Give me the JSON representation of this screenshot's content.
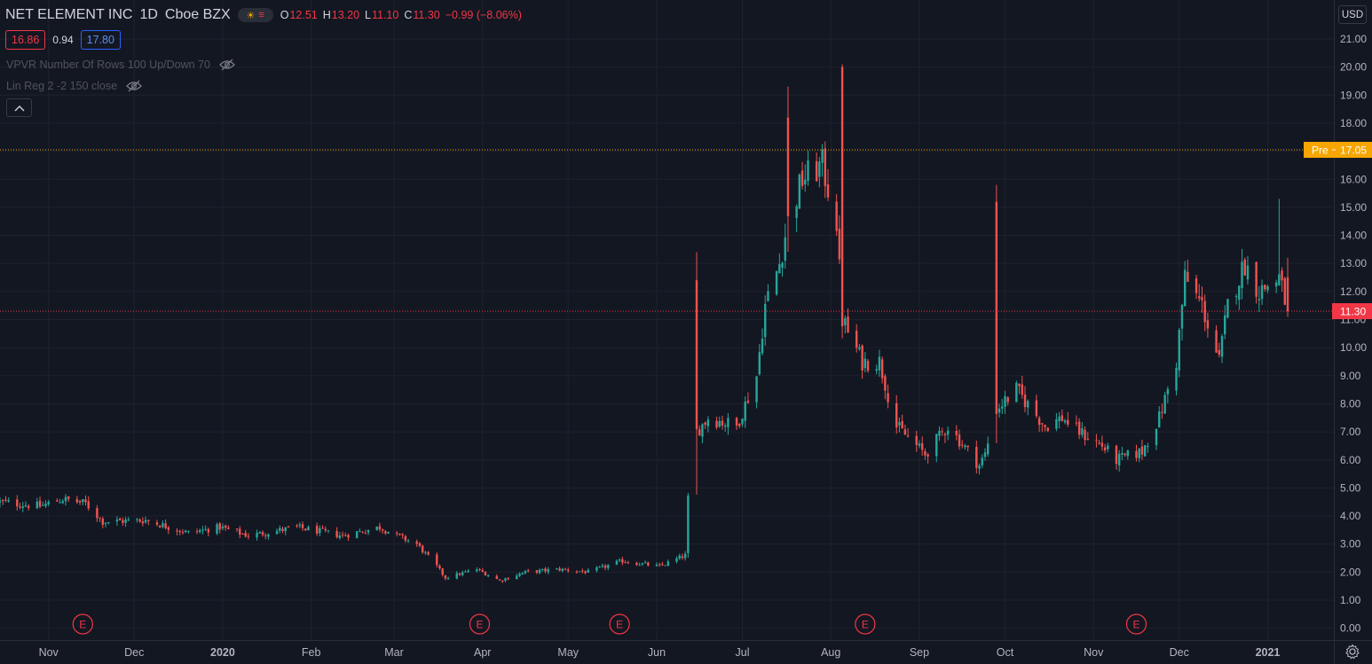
{
  "header": {
    "symbol_name": "NET ELEMENT INC",
    "interval": "1D",
    "exchange": "Cboe BZX",
    "ohlc": {
      "o_label": "O",
      "o": "12.51",
      "h_label": "H",
      "h": "13.20",
      "l_label": "L",
      "l": "11.10",
      "c_label": "C",
      "c": "11.30",
      "change": "−0.99 (−8.06%)"
    },
    "sell_price": "16.86",
    "spread": "0.94",
    "buy_price": "17.80"
  },
  "studies": [
    {
      "label": "VPVR Number Of Rows 100 Up/Down 70"
    },
    {
      "label": "Lin Reg 2 -2 150 close"
    }
  ],
  "currency": "USD",
  "price_labels": {
    "pre_tag": "Pre",
    "pre_value": "17.05",
    "last_value": "11.30"
  },
  "colors": {
    "background": "#131722",
    "up": "#26a69a",
    "down": "#ef5350",
    "pre_line": "#f7a600",
    "last_line": "#f23645"
  },
  "chart_data": {
    "type": "candlestick",
    "ylim": [
      -0.3,
      21.5
    ],
    "y_ticks": [
      "0.00",
      "1.00",
      "2.00",
      "3.00",
      "4.00",
      "5.00",
      "6.00",
      "7.00",
      "8.00",
      "9.00",
      "10.00",
      "11.00",
      "12.00",
      "13.00",
      "14.00",
      "15.00",
      "16.00",
      "17.00",
      "18.00",
      "19.00",
      "20.00",
      "21.00"
    ],
    "x_ticks": [
      {
        "label": "Nov",
        "date": "2019-11-01",
        "bold": false
      },
      {
        "label": "Dec",
        "date": "2019-12-01",
        "bold": false
      },
      {
        "label": "2020",
        "date": "2020-01-01",
        "bold": true
      },
      {
        "label": "Feb",
        "date": "2020-02-01",
        "bold": false
      },
      {
        "label": "Mar",
        "date": "2020-03-01",
        "bold": false
      },
      {
        "label": "Apr",
        "date": "2020-04-01",
        "bold": false
      },
      {
        "label": "May",
        "date": "2020-05-01",
        "bold": false
      },
      {
        "label": "Jun",
        "date": "2020-06-01",
        "bold": false
      },
      {
        "label": "Jul",
        "date": "2020-07-01",
        "bold": false
      },
      {
        "label": "Aug",
        "date": "2020-08-01",
        "bold": false
      },
      {
        "label": "Sep",
        "date": "2020-09-01",
        "bold": false
      },
      {
        "label": "Oct",
        "date": "2020-10-01",
        "bold": false
      },
      {
        "label": "Nov",
        "date": "2020-11-01",
        "bold": false
      },
      {
        "label": "Dec",
        "date": "2020-12-01",
        "bold": false
      },
      {
        "label": "2021",
        "date": "2021-01-01",
        "bold": true
      }
    ],
    "earnings_marker_label": "E",
    "earnings_dates": [
      "2019-11-13",
      "2020-03-31",
      "2020-05-19",
      "2020-08-13",
      "2020-11-16"
    ],
    "horizontal_lines": [
      {
        "name": "pre-market",
        "value": 17.05
      },
      {
        "name": "last-price",
        "value": 11.3
      }
    ],
    "anchors": [
      {
        "date": "2019-10-15",
        "close": 4.5
      },
      {
        "date": "2019-10-29",
        "close": 4.35
      },
      {
        "date": "2019-11-06",
        "close": 4.6
      },
      {
        "date": "2019-11-14",
        "close": 4.45
      },
      {
        "date": "2019-11-20",
        "close": 3.8
      },
      {
        "date": "2019-12-05",
        "close": 3.85
      },
      {
        "date": "2019-12-20",
        "close": 3.4
      },
      {
        "date": "2019-12-31",
        "close": 3.6
      },
      {
        "date": "2020-01-10",
        "close": 3.3
      },
      {
        "date": "2020-01-27",
        "close": 3.6
      },
      {
        "date": "2020-02-12",
        "close": 3.3
      },
      {
        "date": "2020-02-25",
        "close": 3.6
      },
      {
        "date": "2020-03-02",
        "close": 3.3
      },
      {
        "date": "2020-03-09",
        "close": 3.0
      },
      {
        "date": "2020-03-16",
        "close": 2.2
      },
      {
        "date": "2020-03-19",
        "close": 1.8
      },
      {
        "date": "2020-03-30",
        "close": 2.1
      },
      {
        "date": "2020-04-07",
        "close": 1.7
      },
      {
        "date": "2020-04-16",
        "close": 2.0
      },
      {
        "date": "2020-04-28",
        "close": 2.1
      },
      {
        "date": "2020-05-08",
        "close": 2.0
      },
      {
        "date": "2020-05-20",
        "close": 2.4
      },
      {
        "date": "2020-06-02",
        "close": 2.2
      },
      {
        "date": "2020-06-11",
        "close": 2.6
      },
      {
        "date": "2020-06-12",
        "close": 4.6
      },
      {
        "date": "2020-06-15",
        "close": 7.0
      },
      {
        "date": "2020-06-19",
        "close": 7.5
      },
      {
        "date": "2020-06-29",
        "close": 7.2
      },
      {
        "date": "2020-07-06",
        "close": 9.0
      },
      {
        "date": "2020-07-09",
        "close": 11.5
      },
      {
        "date": "2020-07-14",
        "close": 13.0
      },
      {
        "date": "2020-07-17",
        "close": 14.5
      },
      {
        "date": "2020-07-22",
        "close": 16.0
      },
      {
        "date": "2020-07-29",
        "close": 16.5
      },
      {
        "date": "2020-08-03",
        "close": 14.5
      },
      {
        "date": "2020-08-05",
        "close": 11.0
      },
      {
        "date": "2020-08-12",
        "close": 9.5
      },
      {
        "date": "2020-08-18",
        "close": 9.5
      },
      {
        "date": "2020-08-24",
        "close": 7.2
      },
      {
        "date": "2020-09-03",
        "close": 6.2
      },
      {
        "date": "2020-09-11",
        "close": 7.2
      },
      {
        "date": "2020-09-22",
        "close": 5.8
      },
      {
        "date": "2020-09-24",
        "close": 6.2
      },
      {
        "date": "2020-09-28",
        "close": 7.8
      },
      {
        "date": "2020-10-05",
        "close": 8.5
      },
      {
        "date": "2020-10-15",
        "close": 7.2
      },
      {
        "date": "2020-10-21",
        "close": 7.5
      },
      {
        "date": "2020-10-27",
        "close": 7.0
      },
      {
        "date": "2020-11-04",
        "close": 6.5
      },
      {
        "date": "2020-11-09",
        "close": 6.0
      },
      {
        "date": "2020-11-18",
        "close": 6.3
      },
      {
        "date": "2020-11-24",
        "close": 7.5
      },
      {
        "date": "2020-11-30",
        "close": 9.5
      },
      {
        "date": "2020-12-03",
        "close": 12.5
      },
      {
        "date": "2020-12-09",
        "close": 11.5
      },
      {
        "date": "2020-12-15",
        "close": 9.5
      },
      {
        "date": "2020-12-18",
        "close": 11.5
      },
      {
        "date": "2020-12-24",
        "close": 13.0
      },
      {
        "date": "2020-12-29",
        "close": 12.0
      },
      {
        "date": "2021-01-05",
        "close": 12.5
      },
      {
        "date": "2021-01-08",
        "close": 11.3
      }
    ],
    "spikes": [
      {
        "date": "2020-06-15",
        "high": 13.4,
        "open": 12.4
      },
      {
        "date": "2020-07-17",
        "high": 19.3,
        "open": 18.2
      },
      {
        "date": "2020-08-05",
        "high": 20.1,
        "open": 20.0
      },
      {
        "date": "2020-09-28",
        "high": 15.8,
        "open": 15.2
      },
      {
        "date": "2021-01-05",
        "high": 15.3
      }
    ]
  }
}
